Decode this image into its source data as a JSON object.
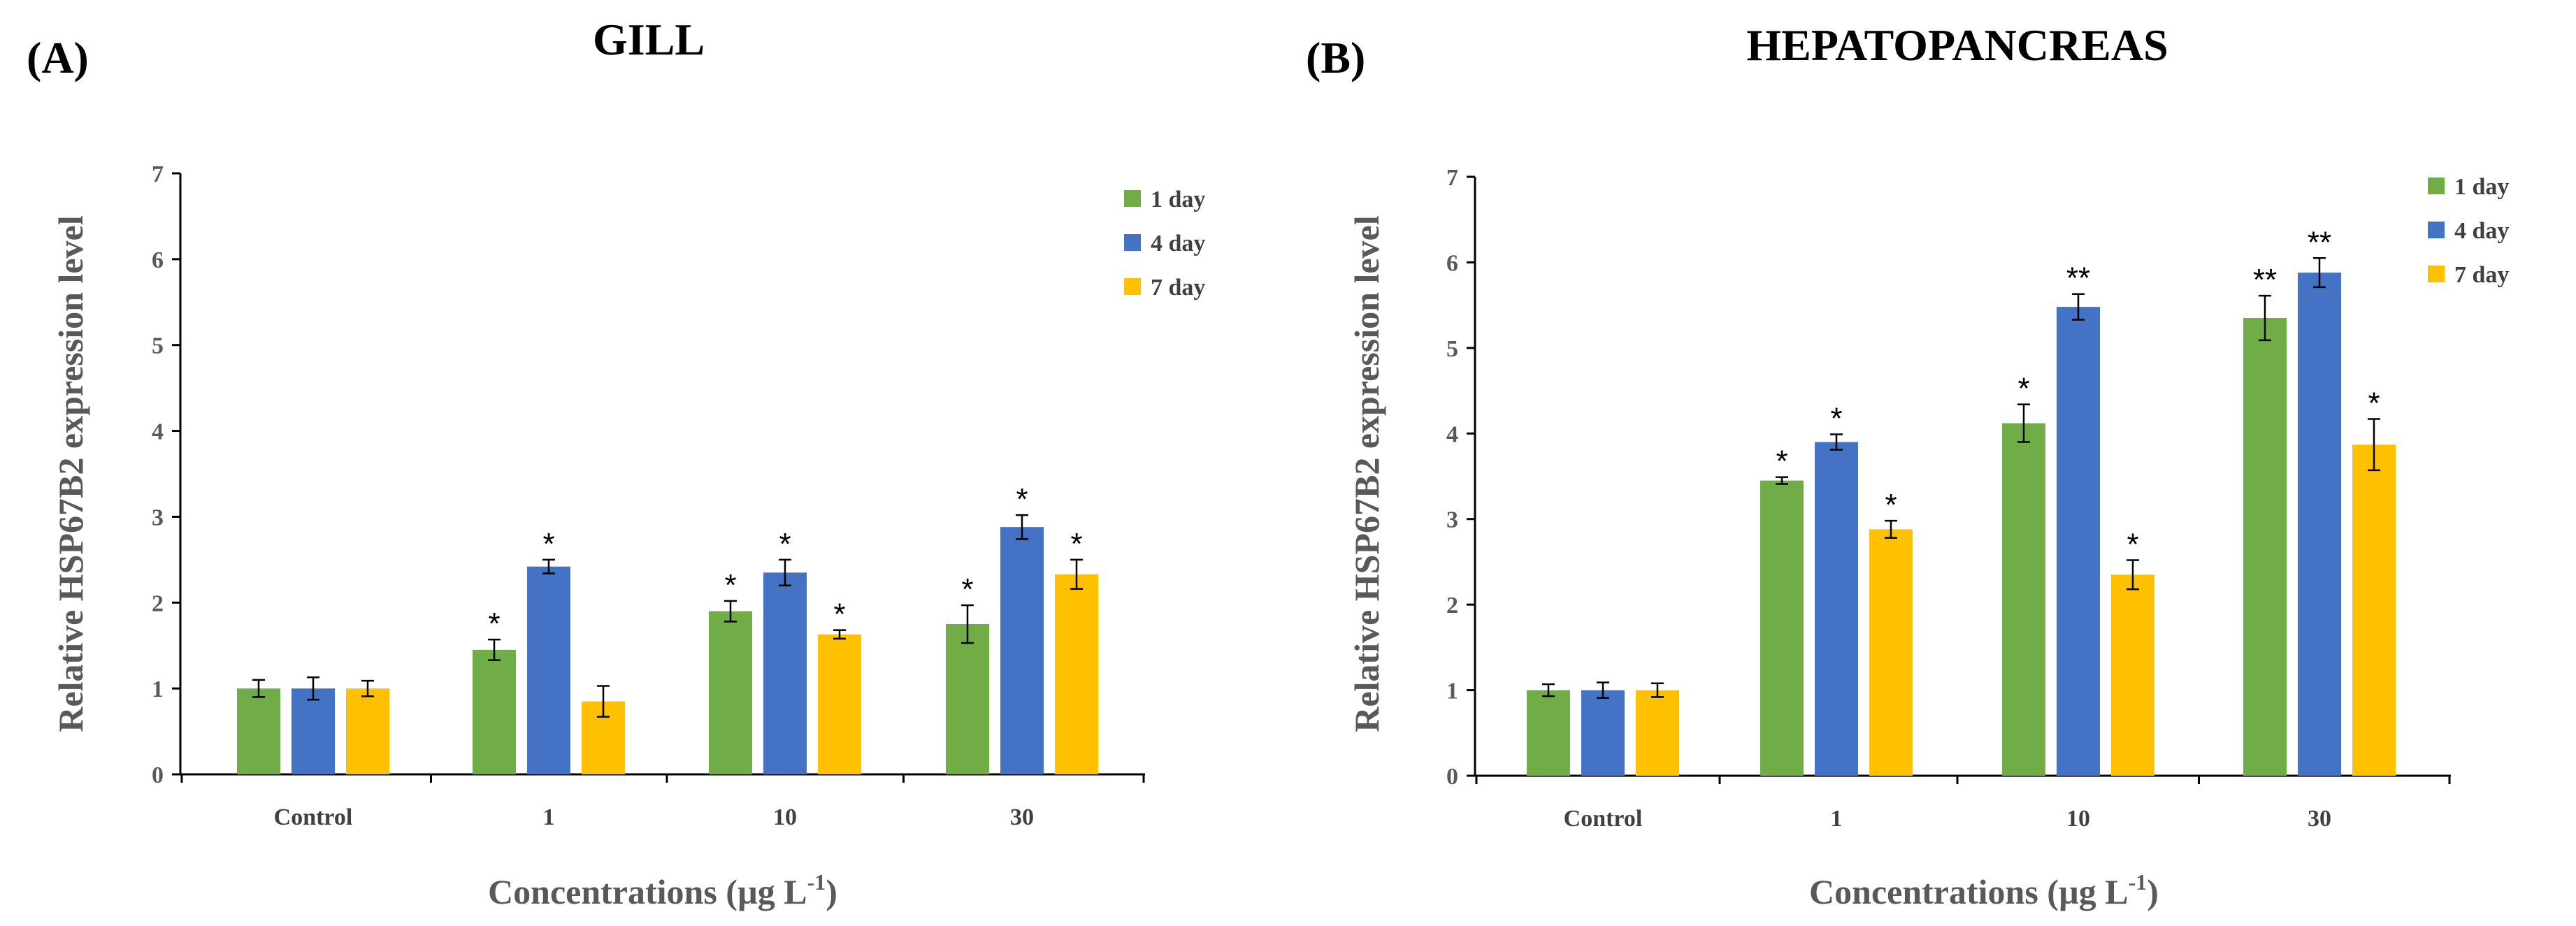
{
  "chart_data": [
    {
      "type": "bar",
      "panel_label": "(A)",
      "title": "GILL",
      "xlabel_main": "Concentrations (µg L",
      "xlabel_sup": "-1",
      "xlabel_end": ")",
      "ylabel": "Relative HSP67B2 expression level",
      "ylim": [
        0,
        7
      ],
      "yticks": [
        "0",
        "1",
        "2",
        "3",
        "4",
        "5",
        "6",
        "7"
      ],
      "categories": [
        "Control",
        "1",
        "10",
        "30"
      ],
      "legend_position": "top-right",
      "series": [
        {
          "name": "1 day",
          "color": "#70AD47",
          "values": [
            1.0,
            1.45,
            1.9,
            1.75
          ],
          "errors": [
            0.1,
            0.12,
            0.12,
            0.22
          ],
          "sig": [
            "",
            "*",
            "*",
            "*"
          ]
        },
        {
          "name": "4 day",
          "color": "#4472C4",
          "values": [
            1.0,
            2.42,
            2.35,
            2.88
          ],
          "errors": [
            0.13,
            0.08,
            0.15,
            0.14
          ],
          "sig": [
            "",
            "*",
            "*",
            "*"
          ]
        },
        {
          "name": "7 day",
          "color": "#FFC000",
          "values": [
            1.0,
            0.85,
            1.63,
            2.33
          ],
          "errors": [
            0.09,
            0.18,
            0.05,
            0.17
          ],
          "sig": [
            "",
            "",
            "*",
            "*"
          ]
        }
      ]
    },
    {
      "type": "bar",
      "panel_label": "(B)",
      "title": "HEPATOPANCREAS",
      "xlabel_main": "Concentrations (µg L",
      "xlabel_sup": "-1",
      "xlabel_end": ")",
      "ylabel": "Relative HSP67B2 expression level",
      "ylim": [
        0,
        7
      ],
      "yticks": [
        "0",
        "1",
        "2",
        "3",
        "4",
        "5",
        "6",
        "7"
      ],
      "categories": [
        "Control",
        "1",
        "10",
        "30"
      ],
      "legend_position": "top-right",
      "series": [
        {
          "name": "1 day",
          "color": "#70AD47",
          "values": [
            1.0,
            3.45,
            4.12,
            5.35
          ],
          "errors": [
            0.07,
            0.04,
            0.22,
            0.26
          ],
          "sig": [
            "",
            "*",
            "*",
            "**"
          ]
        },
        {
          "name": "4 day",
          "color": "#4472C4",
          "values": [
            1.0,
            3.9,
            5.48,
            5.88
          ],
          "errors": [
            0.09,
            0.09,
            0.15,
            0.17
          ],
          "sig": [
            "",
            "*",
            "**",
            "**"
          ]
        },
        {
          "name": "7 day",
          "color": "#FFC000",
          "values": [
            1.0,
            2.88,
            2.35,
            3.87
          ],
          "errors": [
            0.08,
            0.1,
            0.17,
            0.3
          ],
          "sig": [
            "",
            "*",
            "*",
            "*"
          ]
        }
      ]
    }
  ]
}
